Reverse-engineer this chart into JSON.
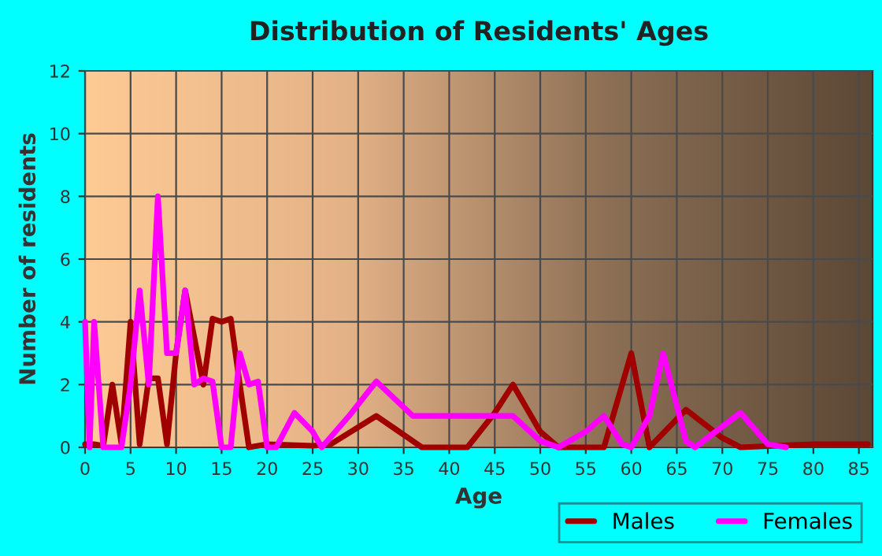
{
  "chart_data": {
    "type": "line",
    "title": "Distribution of Residents' Ages",
    "xlabel": "Age",
    "ylabel": "Number of residents",
    "series": [
      {
        "name": "Males",
        "color": "#a00000",
        "x": [
          0,
          1,
          2,
          3,
          4,
          5,
          6,
          7,
          8,
          9,
          10,
          11,
          12,
          13,
          14,
          15,
          16,
          17,
          18,
          20,
          25,
          27,
          32,
          37,
          42,
          45,
          47,
          50,
          52,
          57,
          60,
          62,
          66,
          70,
          72,
          80,
          86
        ],
        "values": [
          0.1,
          0.1,
          0.05,
          2,
          0.1,
          4,
          0.1,
          2.2,
          2.2,
          0.1,
          3,
          5,
          3.5,
          2,
          4.1,
          4,
          4.1,
          2,
          0,
          0.1,
          0.05,
          0.1,
          1,
          0,
          0,
          1.1,
          2,
          0.5,
          0,
          0,
          3,
          0,
          1.2,
          0.3,
          0,
          0.1,
          0.1
        ]
      },
      {
        "name": "Females",
        "color": "#ff00ff",
        "x": [
          0,
          0.5,
          1,
          2,
          4,
          5,
          6,
          7,
          8,
          9,
          10,
          11,
          12,
          13,
          14,
          15,
          16,
          17,
          18,
          19,
          20,
          21,
          23,
          25,
          26,
          29,
          32,
          36,
          40,
          45,
          47,
          50,
          52,
          55,
          57,
          59,
          60,
          62,
          63.5,
          66,
          67,
          72,
          75,
          77
        ],
        "values": [
          4,
          0,
          4,
          0,
          0,
          2,
          5,
          2,
          8,
          3,
          3,
          5,
          2,
          2.2,
          2.1,
          0,
          0,
          3,
          2,
          2.1,
          0,
          0,
          1.1,
          0.5,
          0,
          1,
          2.1,
          1,
          1,
          1,
          1,
          0.2,
          0,
          0.5,
          1,
          0.1,
          0,
          1,
          3,
          0.2,
          0,
          1.1,
          0.1,
          0
        ]
      }
    ],
    "xlim": [
      0,
      86.5
    ],
    "ylim": [
      0,
      12
    ],
    "xticks": [
      0,
      5,
      10,
      15,
      20,
      25,
      30,
      35,
      40,
      45,
      50,
      55,
      60,
      65,
      70,
      75,
      80,
      85
    ],
    "yticks": [
      0,
      2,
      4,
      6,
      8,
      10,
      12
    ],
    "grid": true,
    "legend": "bottom"
  }
}
